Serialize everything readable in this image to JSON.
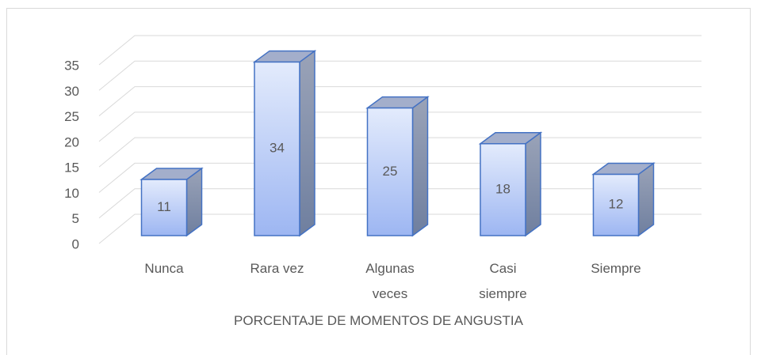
{
  "chart_data": {
    "type": "bar",
    "x_label": "PORCENTAJE DE MOMENTOS DE ANGUSTIA",
    "categories": [
      "Nunca",
      "Rara vez",
      "Algunas veces",
      "Casi siempre",
      "Siempre"
    ],
    "values": [
      11,
      34,
      25,
      18,
      12
    ],
    "color": "#4472c4",
    "ylim": [
      0,
      35
    ],
    "yticks": [
      0,
      5,
      10,
      15,
      20,
      25,
      30,
      35
    ],
    "grid": true
  }
}
